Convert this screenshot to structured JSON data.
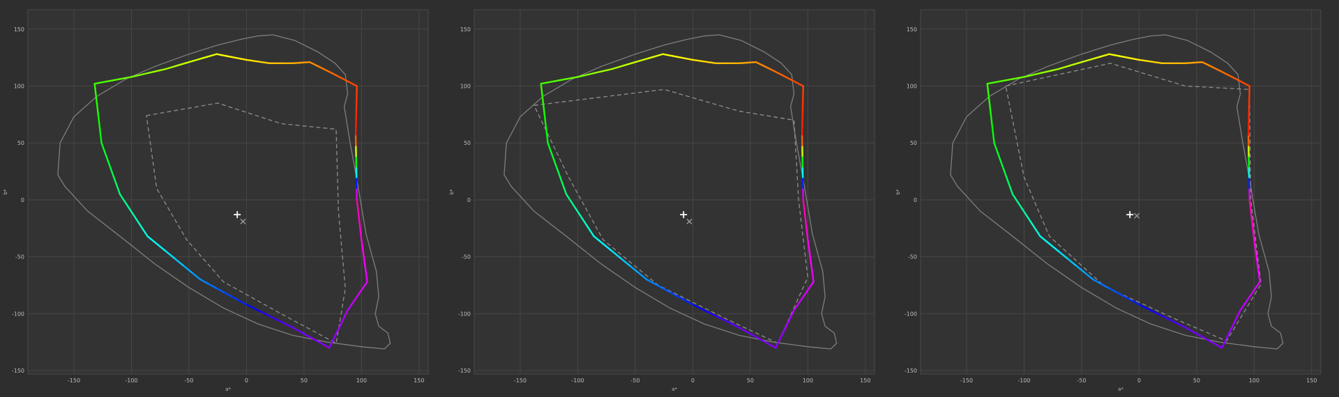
{
  "colors": {
    "background": "#2e2e2e",
    "plot_bg": "#333333",
    "grid": "#474747",
    "frame": "#4a4a4a",
    "tick_text": "#bdbdbd",
    "outline": "#7f7f7f",
    "dashed": "#8f8f8f",
    "white_point": "#ffffff",
    "cross_marker": "#a0a0a0"
  },
  "chart_data": [
    {
      "type": "line",
      "xlabel": "a*",
      "ylabel": "b*",
      "xlim": [
        -190,
        158
      ],
      "ylim": [
        -153,
        167
      ],
      "xticks": [
        -150,
        -100,
        -50,
        0,
        50,
        100,
        150
      ],
      "yticks": [
        -150,
        -100,
        -50,
        0,
        50,
        100,
        150
      ],
      "grid": true,
      "outline": [
        [
          23,
          145
        ],
        [
          10,
          144
        ],
        [
          -5,
          141
        ],
        [
          -25,
          136
        ],
        [
          -50,
          128
        ],
        [
          -80,
          117
        ],
        [
          -105,
          106
        ],
        [
          -130,
          91
        ],
        [
          -150,
          73
        ],
        [
          -162,
          50
        ],
        [
          -164,
          22
        ],
        [
          -158,
          12
        ],
        [
          -138,
          -10
        ],
        [
          -110,
          -32
        ],
        [
          -80,
          -56
        ],
        [
          -50,
          -77
        ],
        [
          -20,
          -95
        ],
        [
          10,
          -109
        ],
        [
          40,
          -119
        ],
        [
          70,
          -125
        ],
        [
          100,
          -129
        ],
        [
          120,
          -131
        ],
        [
          125,
          -126
        ],
        [
          123,
          -117
        ],
        [
          115,
          -111
        ],
        [
          112,
          -100
        ],
        [
          115,
          -85
        ],
        [
          113,
          -63
        ],
        [
          104,
          -30
        ],
        [
          97,
          12
        ],
        [
          90,
          51
        ],
        [
          85,
          82
        ],
        [
          88,
          93
        ],
        [
          86,
          110
        ],
        [
          77,
          120
        ],
        [
          62,
          130
        ],
        [
          42,
          140
        ],
        [
          23,
          145
        ]
      ],
      "gamut_polyline": [
        [
          -132,
          102
        ],
        [
          -100,
          108
        ],
        [
          -70,
          115
        ],
        [
          -50,
          121
        ],
        [
          -26,
          128
        ],
        [
          0,
          123
        ],
        [
          20,
          120
        ],
        [
          40,
          120
        ],
        [
          55,
          121
        ],
        [
          75,
          111
        ],
        [
          96,
          100
        ],
        [
          95,
          56
        ],
        [
          96,
          0
        ],
        [
          100,
          -35
        ],
        [
          105,
          -72
        ],
        [
          88,
          -97
        ],
        [
          72,
          -130
        ],
        [
          40,
          -112
        ],
        [
          0,
          -92
        ],
        [
          -40,
          -70
        ],
        [
          -86,
          -32
        ],
        [
          -110,
          5
        ],
        [
          -126,
          50
        ],
        [
          -132,
          102
        ]
      ],
      "dashed_polyline": [
        [
          -87,
          74
        ],
        [
          -25,
          85
        ],
        [
          30,
          67
        ],
        [
          78,
          62
        ],
        [
          80,
          -10
        ],
        [
          86,
          -78
        ],
        [
          78,
          -126
        ],
        [
          30,
          -100
        ],
        [
          -20,
          -72
        ],
        [
          -52,
          -35
        ],
        [
          -78,
          10
        ],
        [
          -87,
          74
        ]
      ],
      "white_point": [
        -8,
        -13
      ],
      "cross_marker": [
        -3,
        -19
      ]
    },
    {
      "type": "line",
      "xlabel": "a*",
      "ylabel": "b*",
      "xlim": [
        -190,
        158
      ],
      "ylim": [
        -153,
        167
      ],
      "xticks": [
        -150,
        -100,
        -50,
        0,
        50,
        100,
        150
      ],
      "yticks": [
        -150,
        -100,
        -50,
        0,
        50,
        100,
        150
      ],
      "grid": true,
      "outline": [
        [
          23,
          145
        ],
        [
          10,
          144
        ],
        [
          -5,
          141
        ],
        [
          -25,
          136
        ],
        [
          -50,
          128
        ],
        [
          -80,
          117
        ],
        [
          -105,
          106
        ],
        [
          -130,
          91
        ],
        [
          -150,
          73
        ],
        [
          -162,
          50
        ],
        [
          -164,
          22
        ],
        [
          -158,
          12
        ],
        [
          -138,
          -10
        ],
        [
          -110,
          -32
        ],
        [
          -80,
          -56
        ],
        [
          -50,
          -77
        ],
        [
          -20,
          -95
        ],
        [
          10,
          -109
        ],
        [
          40,
          -119
        ],
        [
          70,
          -125
        ],
        [
          100,
          -129
        ],
        [
          120,
          -131
        ],
        [
          125,
          -126
        ],
        [
          123,
          -117
        ],
        [
          115,
          -111
        ],
        [
          112,
          -100
        ],
        [
          115,
          -85
        ],
        [
          113,
          -63
        ],
        [
          104,
          -30
        ],
        [
          97,
          12
        ],
        [
          90,
          51
        ],
        [
          85,
          82
        ],
        [
          88,
          93
        ],
        [
          86,
          110
        ],
        [
          77,
          120
        ],
        [
          62,
          130
        ],
        [
          42,
          140
        ],
        [
          23,
          145
        ]
      ],
      "gamut_polyline": [
        [
          -132,
          102
        ],
        [
          -100,
          108
        ],
        [
          -70,
          115
        ],
        [
          -50,
          121
        ],
        [
          -26,
          128
        ],
        [
          0,
          123
        ],
        [
          20,
          120
        ],
        [
          40,
          120
        ],
        [
          55,
          121
        ],
        [
          75,
          111
        ],
        [
          96,
          100
        ],
        [
          95,
          56
        ],
        [
          96,
          0
        ],
        [
          100,
          -35
        ],
        [
          105,
          -72
        ],
        [
          88,
          -97
        ],
        [
          72,
          -130
        ],
        [
          40,
          -112
        ],
        [
          0,
          -92
        ],
        [
          -40,
          -70
        ],
        [
          -86,
          -32
        ],
        [
          -110,
          5
        ],
        [
          -126,
          50
        ],
        [
          -132,
          102
        ]
      ],
      "dashed_polyline": [
        [
          -138,
          83
        ],
        [
          -25,
          97
        ],
        [
          40,
          78
        ],
        [
          88,
          70
        ],
        [
          92,
          0
        ],
        [
          100,
          -68
        ],
        [
          74,
          -126
        ],
        [
          30,
          -105
        ],
        [
          -30,
          -75
        ],
        [
          -78,
          -35
        ],
        [
          -108,
          20
        ],
        [
          -138,
          83
        ]
      ],
      "white_point": [
        -8,
        -13
      ],
      "cross_marker": [
        -3,
        -19
      ]
    },
    {
      "type": "line",
      "xlabel": "a*",
      "ylabel": "b*",
      "xlim": [
        -190,
        158
      ],
      "ylim": [
        -153,
        167
      ],
      "xticks": [
        -150,
        -100,
        -50,
        0,
        50,
        100,
        150
      ],
      "yticks": [
        -150,
        -100,
        -50,
        0,
        50,
        100,
        150
      ],
      "grid": true,
      "outline": [
        [
          23,
          145
        ],
        [
          10,
          144
        ],
        [
          -5,
          141
        ],
        [
          -25,
          136
        ],
        [
          -50,
          128
        ],
        [
          -80,
          117
        ],
        [
          -105,
          106
        ],
        [
          -130,
          91
        ],
        [
          -150,
          73
        ],
        [
          -162,
          50
        ],
        [
          -164,
          22
        ],
        [
          -158,
          12
        ],
        [
          -138,
          -10
        ],
        [
          -110,
          -32
        ],
        [
          -80,
          -56
        ],
        [
          -50,
          -77
        ],
        [
          -20,
          -95
        ],
        [
          10,
          -109
        ],
        [
          40,
          -119
        ],
        [
          70,
          -125
        ],
        [
          100,
          -129
        ],
        [
          120,
          -131
        ],
        [
          125,
          -126
        ],
        [
          123,
          -117
        ],
        [
          115,
          -111
        ],
        [
          112,
          -100
        ],
        [
          115,
          -85
        ],
        [
          113,
          -63
        ],
        [
          104,
          -30
        ],
        [
          97,
          12
        ],
        [
          90,
          51
        ],
        [
          85,
          82
        ],
        [
          88,
          93
        ],
        [
          86,
          110
        ],
        [
          77,
          120
        ],
        [
          62,
          130
        ],
        [
          42,
          140
        ],
        [
          23,
          145
        ]
      ],
      "gamut_polyline": [
        [
          -132,
          102
        ],
        [
          -100,
          108
        ],
        [
          -70,
          115
        ],
        [
          -50,
          121
        ],
        [
          -26,
          128
        ],
        [
          0,
          123
        ],
        [
          20,
          120
        ],
        [
          40,
          120
        ],
        [
          55,
          121
        ],
        [
          75,
          111
        ],
        [
          96,
          100
        ],
        [
          95,
          56
        ],
        [
          96,
          0
        ],
        [
          100,
          -35
        ],
        [
          105,
          -72
        ],
        [
          88,
          -97
        ],
        [
          72,
          -130
        ],
        [
          40,
          -112
        ],
        [
          0,
          -92
        ],
        [
          -40,
          -70
        ],
        [
          -86,
          -32
        ],
        [
          -110,
          5
        ],
        [
          -126,
          50
        ],
        [
          -132,
          102
        ]
      ],
      "dashed_polyline": [
        [
          -116,
          100
        ],
        [
          -25,
          120
        ],
        [
          40,
          100
        ],
        [
          96,
          97
        ],
        [
          97,
          0
        ],
        [
          106,
          -74
        ],
        [
          76,
          -124
        ],
        [
          30,
          -104
        ],
        [
          -30,
          -76
        ],
        [
          -78,
          -32
        ],
        [
          -100,
          20
        ],
        [
          -116,
          100
        ]
      ],
      "white_point": [
        -8,
        -13
      ],
      "cross_marker": [
        -2,
        -14
      ]
    }
  ]
}
